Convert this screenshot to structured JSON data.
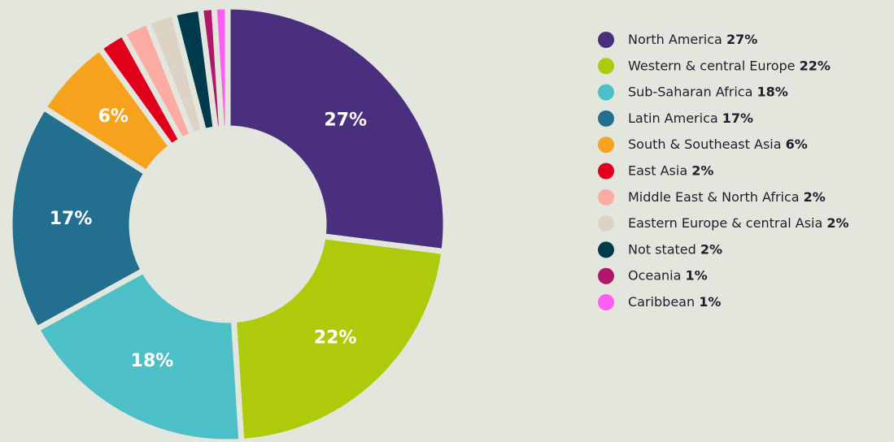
{
  "chart_data": {
    "type": "pie",
    "categories": [
      "North America",
      "Western & central Europe",
      "Sub-Saharan Africa",
      "Latin America",
      "South & Southeast Asia",
      "East Asia",
      "Middle East & North Africa",
      "Eastern Europe & central Asia",
      "Not stated",
      "Oceania",
      "Caribbean"
    ],
    "values": [
      27,
      22,
      18,
      17,
      6,
      2,
      2,
      2,
      2,
      1,
      1
    ],
    "value_labels": [
      "27%",
      "22%",
      "18%",
      "17%",
      "6%",
      "2%",
      "2%",
      "2%",
      "2%",
      "1%",
      "1%"
    ],
    "colors": [
      "#4b2f7f",
      "#afc90b",
      "#4dbfc7",
      "#236f90",
      "#f7a21d",
      "#e0001b",
      "#fcaba2",
      "#dcd3c5",
      "#003a4d",
      "#b1176b",
      "#ff5cf4"
    ],
    "donut": true,
    "legend": "right"
  }
}
